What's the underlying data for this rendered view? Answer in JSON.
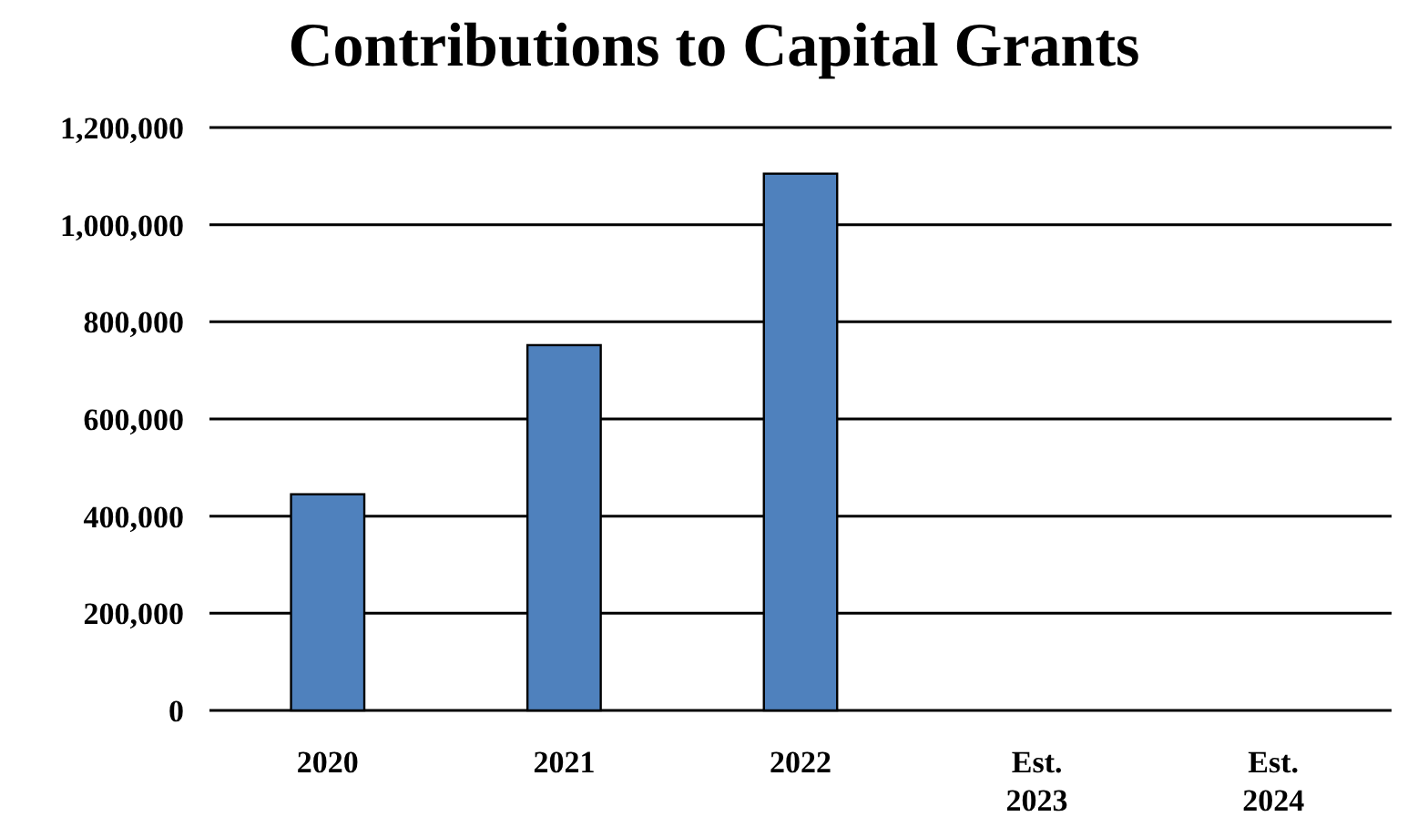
{
  "chart_data": {
    "type": "bar",
    "title": "Contributions to Capital Grants",
    "categories": [
      "2020",
      "2021",
      "2022",
      "Est.\n2023",
      "Est.\n2024"
    ],
    "values": [
      445000,
      752000,
      1105000,
      null,
      null
    ],
    "color": "#4f81bd",
    "ylim": [
      0,
      1200000
    ],
    "yticks": [
      {
        "value": 0,
        "label": "0"
      },
      {
        "value": 200000,
        "label": "200,000"
      },
      {
        "value": 400000,
        "label": "400,000"
      },
      {
        "value": 600000,
        "label": "600,000"
      },
      {
        "value": 800000,
        "label": "800,000"
      },
      {
        "value": 1000000,
        "label": "1,000,000"
      },
      {
        "value": 1200000,
        "label": "1,200,000"
      }
    ],
    "grid": "y"
  }
}
